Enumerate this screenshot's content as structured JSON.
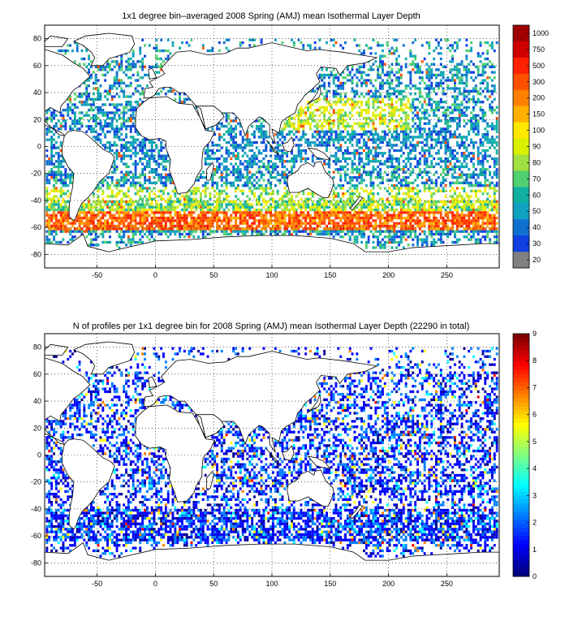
{
  "chart_data": [
    {
      "type": "heatmap",
      "title": "1x1 degree bin–averaged 2008 Spring (AMJ) mean Isothermal Layer Depth",
      "xlim": [
        -95,
        295
      ],
      "ylim": [
        -90,
        90
      ],
      "x_ticks": [
        -50,
        0,
        50,
        100,
        150,
        200,
        250
      ],
      "x_tick_labels": [
        "-50",
        "0",
        "50",
        "100",
        "150",
        "200",
        "250"
      ],
      "y_ticks": [
        80,
        60,
        40,
        20,
        0,
        -20,
        -40,
        -60,
        -80
      ],
      "y_tick_labels": [
        "80",
        "60",
        "40",
        "20",
        "0",
        "-20",
        "-40",
        "-60",
        "-80"
      ],
      "grid": true,
      "colorbar": {
        "position": "right",
        "labels": [
          "1000",
          "750",
          "500",
          "300",
          "200",
          "150",
          "100",
          "90",
          "80",
          "70",
          "60",
          "50",
          "40",
          "30",
          "20"
        ],
        "colors": [
          "#a00000",
          "#d00000",
          "#ff2000",
          "#ff5000",
          "#ff8000",
          "#ffb000",
          "#ffe800",
          "#d8f000",
          "#a0e040",
          "#50d070",
          "#10b0a0",
          "#10a0c0",
          "#1070d0",
          "#1040e0",
          "#808080"
        ]
      }
    },
    {
      "type": "heatmap",
      "title": "N of profiles per 1x1 degree bin for 2008 Spring (AMJ) mean Isothermal Layer Depth  (22290 in total)",
      "xlim": [
        -95,
        295
      ],
      "ylim": [
        -90,
        90
      ],
      "x_ticks": [
        -50,
        0,
        50,
        100,
        150,
        200,
        250
      ],
      "x_tick_labels": [
        "-50",
        "0",
        "50",
        "100",
        "150",
        "200",
        "250"
      ],
      "y_ticks": [
        80,
        60,
        40,
        20,
        0,
        -20,
        -40,
        -60,
        -80
      ],
      "y_tick_labels": [
        "80",
        "60",
        "40",
        "20",
        "0",
        "-20",
        "-40",
        "-60",
        "-80"
      ],
      "grid": true,
      "colorbar": {
        "position": "right",
        "min": 0,
        "max": 9,
        "labels": [
          "9",
          "8",
          "7",
          "6",
          "5",
          "4",
          "3",
          "2",
          "1",
          "0"
        ],
        "colors": [
          "#7f0000",
          "#ff0000",
          "#ff8000",
          "#ffff00",
          "#80ff80",
          "#00ffff",
          "#0080ff",
          "#0000ff",
          "#00008f"
        ]
      }
    }
  ]
}
